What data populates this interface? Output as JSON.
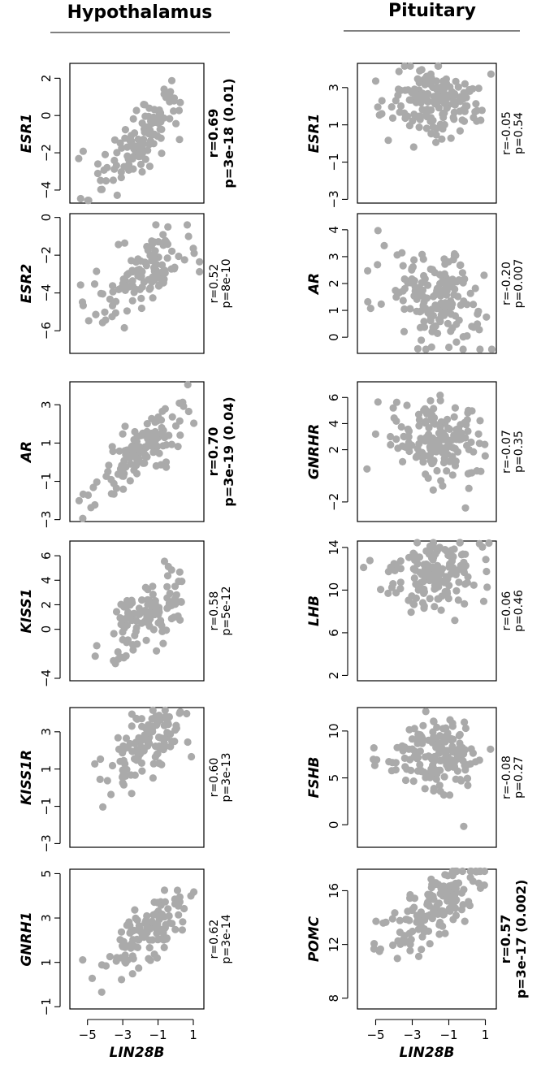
{
  "columns": [
    {
      "title": "Hypothalamus"
    },
    {
      "title": "Pituitary"
    }
  ],
  "x_axis": {
    "label": "LIN28B",
    "ticks": [
      -5,
      -3,
      -1,
      1
    ]
  },
  "chart_data": [
    {
      "type": "scatter",
      "column": "Hypothalamus",
      "ylabel": "ESR1",
      "xlim": [
        -6,
        1.6
      ],
      "ylim": [
        -4.7,
        2.8
      ],
      "yticks": [
        2,
        0,
        -2,
        -4
      ],
      "color": "#aaaaaa",
      "r": "r=0.69",
      "p": "p=3e-18 (0.01)",
      "bold": true,
      "slope": 0.8,
      "intercept": -0.5,
      "noise": 0.9,
      "n": 120,
      "seed": 11
    },
    {
      "type": "scatter",
      "column": "Hypothalamus",
      "ylabel": "ESR2",
      "xlim": [
        -6,
        1.6
      ],
      "ylim": [
        -7.2,
        0.2
      ],
      "yticks": [
        0,
        -2,
        -4,
        -6
      ],
      "color": "#aaaaaa",
      "r": "r=0.52",
      "p": "p=8e-10",
      "bold": false,
      "slope": 0.55,
      "intercept": -2.5,
      "noise": 0.9,
      "n": 120,
      "seed": 23
    },
    {
      "type": "scatter",
      "column": "Hypothalamus",
      "ylabel": "AR",
      "xlim": [
        -6,
        1.6
      ],
      "ylim": [
        -3.1,
        4.2
      ],
      "yticks": [
        3,
        1,
        -1,
        -3
      ],
      "color": "#aaaaaa",
      "r": "r=0.70",
      "p": "p=3e-19 (0.04)",
      "bold": true,
      "slope": 0.75,
      "intercept": 1.3,
      "noise": 0.8,
      "n": 120,
      "seed": 37
    },
    {
      "type": "scatter",
      "column": "Hypothalamus",
      "ylabel": "KISS1",
      "xlim": [
        -6,
        1.6
      ],
      "ylim": [
        -4.2,
        7.2
      ],
      "yticks": [
        6,
        4,
        2,
        0,
        -4
      ],
      "color": "#aaaaaa",
      "r": "r=0.58",
      "p": "p=5e-12",
      "bold": false,
      "slope": 1.0,
      "intercept": 1.6,
      "noise": 1.4,
      "n": 120,
      "seed": 41
    },
    {
      "type": "scatter",
      "column": "Hypothalamus",
      "ylabel": "KISS1R",
      "xlim": [
        -6,
        1.6
      ],
      "ylim": [
        -3.2,
        4.3
      ],
      "yticks": [
        3,
        1,
        -1,
        -3
      ],
      "color": "#aaaaaa",
      "r": "r=0.60",
      "p": "p=3e-13",
      "bold": false,
      "slope": 0.75,
      "intercept": 2.8,
      "noise": 0.9,
      "n": 120,
      "seed": 53
    },
    {
      "type": "scatter",
      "column": "Hypothalamus",
      "ylabel": "GNRH1",
      "xlim": [
        -6,
        1.6
      ],
      "ylim": [
        -1.1,
        5.2
      ],
      "yticks": [
        5,
        3,
        1,
        -1
      ],
      "color": "#aaaaaa",
      "r": "r=0.62",
      "p": "p=3e-14",
      "bold": false,
      "slope": 0.55,
      "intercept": 2.5,
      "noise": 0.6,
      "n": 120,
      "seed": 67
    },
    {
      "type": "scatter",
      "column": "Pituitary",
      "ylabel": "ESR1",
      "xlim": [
        -6,
        1.6
      ],
      "ylim": [
        -3.2,
        4.3
      ],
      "yticks": [
        3,
        1,
        -1,
        -3
      ],
      "color": "#aaaaaa",
      "r": "r=-0.05",
      "p": "p=0.54",
      "bold": false,
      "slope": -0.05,
      "intercept": 2.2,
      "noise": 1.0,
      "n": 160,
      "seed": 71
    },
    {
      "type": "scatter",
      "column": "Pituitary",
      "ylabel": "AR",
      "xlim": [
        -6,
        1.6
      ],
      "ylim": [
        -0.6,
        4.6
      ],
      "yticks": [
        4,
        3,
        2,
        1,
        0
      ],
      "color": "#aaaaaa",
      "r": "r=-0.20",
      "p": "p=0.007",
      "bold": false,
      "slope": -0.2,
      "intercept": 1.3,
      "noise": 0.9,
      "n": 160,
      "seed": 83
    },
    {
      "type": "scatter",
      "column": "Pituitary",
      "ylabel": "GNRHR",
      "xlim": [
        -6,
        1.6
      ],
      "ylim": [
        -3.5,
        7.2
      ],
      "yticks": [
        6,
        4,
        2,
        -2
      ],
      "color": "#aaaaaa",
      "r": "r=-0.07",
      "p": "p=0.35",
      "bold": false,
      "slope": -0.15,
      "intercept": 2.4,
      "noise": 1.6,
      "n": 160,
      "seed": 97
    },
    {
      "type": "scatter",
      "column": "Pituitary",
      "ylabel": "LHB",
      "xlim": [
        -6,
        1.6
      ],
      "ylim": [
        1.5,
        14.6
      ],
      "yticks": [
        14,
        10,
        6,
        2
      ],
      "color": "#aaaaaa",
      "r": "r=0.06",
      "p": "p=0.46",
      "bold": false,
      "slope": 0.1,
      "intercept": 11.5,
      "noise": 1.8,
      "n": 160,
      "seed": 103
    },
    {
      "type": "scatter",
      "column": "Pituitary",
      "ylabel": "FSHB",
      "xlim": [
        -6,
        1.6
      ],
      "ylim": [
        -2.4,
        12.5
      ],
      "yticks": [
        10,
        5,
        0
      ],
      "color": "#aaaaaa",
      "r": "r=-0.08",
      "p": "p=0.27",
      "bold": false,
      "slope": -0.2,
      "intercept": 7.0,
      "noise": 2.0,
      "n": 160,
      "seed": 113
    },
    {
      "type": "scatter",
      "column": "Pituitary",
      "ylabel": "POMC",
      "xlim": [
        -6,
        1.6
      ],
      "ylim": [
        7.2,
        17.6
      ],
      "yticks": [
        16,
        12,
        8
      ],
      "color": "#aaaaaa",
      "r": "r=0.57",
      "p": "p=3e-17 (0.002)",
      "bold": true,
      "slope": 0.9,
      "intercept": 15.5,
      "noise": 1.2,
      "n": 160,
      "seed": 127
    }
  ]
}
